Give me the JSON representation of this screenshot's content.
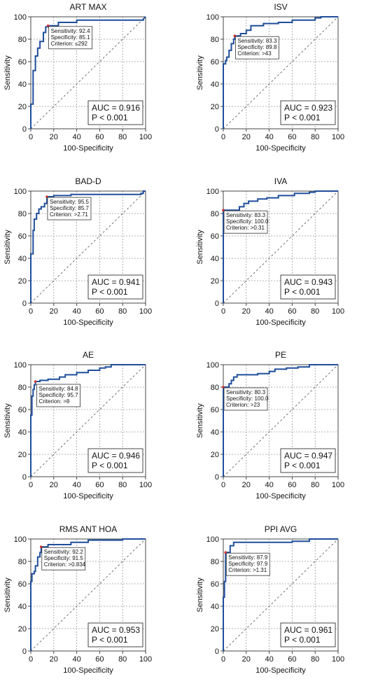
{
  "chart_data": [
    {
      "type": "line",
      "title": "ART MAX",
      "xlabel": "100-Specificity",
      "ylabel": "Sensitivity",
      "xlim": [
        0,
        100
      ],
      "ylim": [
        0,
        100
      ],
      "xticks": [
        "0",
        "20",
        "40",
        "60",
        "80",
        "100"
      ],
      "yticks": [
        "0",
        "20",
        "40",
        "60",
        "80",
        "100"
      ],
      "grid": true,
      "criterion_box": {
        "sensitivity": "Sensitivity: 92.4",
        "specificity": "Specificity: 85.1",
        "criterion": "Criterion: ≤292",
        "position": "top-left"
      },
      "auc_box": {
        "auc": "AUC = 0.916",
        "p": "P < 0.001",
        "position": "bottom-right"
      },
      "roc": [
        [
          0,
          0
        ],
        [
          0,
          22
        ],
        [
          2,
          22
        ],
        [
          2,
          52
        ],
        [
          4,
          52
        ],
        [
          4,
          65
        ],
        [
          6,
          65
        ],
        [
          6,
          72
        ],
        [
          8,
          72
        ],
        [
          8,
          78
        ],
        [
          11,
          78
        ],
        [
          11,
          86
        ],
        [
          13,
          86
        ],
        [
          13,
          91
        ],
        [
          15,
          91
        ],
        [
          15,
          92
        ],
        [
          24,
          92
        ],
        [
          24,
          95
        ],
        [
          40,
          95
        ],
        [
          40,
          97
        ],
        [
          98,
          97
        ],
        [
          98,
          98
        ],
        [
          100,
          100
        ]
      ],
      "cut_point": [
        15,
        92
      ]
    },
    {
      "type": "line",
      "title": "ISV",
      "xlabel": "100-Specificity",
      "ylabel": "Sensitivity",
      "xlim": [
        0,
        100
      ],
      "ylim": [
        0,
        100
      ],
      "xticks": [
        "0",
        "20",
        "40",
        "60",
        "80",
        "100"
      ],
      "yticks": [
        "0",
        "20",
        "40",
        "60",
        "80",
        "100"
      ],
      "grid": true,
      "criterion_box": {
        "sensitivity": "Sensitivity: 83.3",
        "specificity": "Specificity: 89.8",
        "criterion": "Criterion: >43",
        "position": "top-center"
      },
      "auc_box": {
        "auc": "AUC = 0.923",
        "p": "P < 0.001",
        "position": "bottom-right"
      },
      "roc": [
        [
          0,
          0
        ],
        [
          0,
          58
        ],
        [
          2,
          58
        ],
        [
          2,
          61
        ],
        [
          3,
          61
        ],
        [
          3,
          64
        ],
        [
          5,
          64
        ],
        [
          5,
          70
        ],
        [
          7,
          70
        ],
        [
          7,
          76
        ],
        [
          9,
          76
        ],
        [
          9,
          80
        ],
        [
          10,
          80
        ],
        [
          10,
          83
        ],
        [
          15,
          83
        ],
        [
          15,
          85
        ],
        [
          20,
          85
        ],
        [
          20,
          88
        ],
        [
          24,
          88
        ],
        [
          24,
          92
        ],
        [
          35,
          92
        ],
        [
          35,
          94
        ],
        [
          48,
          94
        ],
        [
          48,
          95
        ],
        [
          60,
          95
        ],
        [
          60,
          97
        ],
        [
          80,
          97
        ],
        [
          80,
          99
        ],
        [
          85,
          99
        ],
        [
          85,
          100
        ],
        [
          100,
          100
        ]
      ],
      "cut_point": [
        10,
        83
      ]
    },
    {
      "type": "line",
      "title": "BAD-D",
      "xlabel": "100-Specificity",
      "ylabel": "Sensitivity",
      "xlim": [
        0,
        100
      ],
      "ylim": [
        0,
        100
      ],
      "xticks": [
        "0",
        "20",
        "40",
        "60",
        "80",
        "100"
      ],
      "yticks": [
        "0",
        "20",
        "40",
        "60",
        "80",
        "100"
      ],
      "grid": true,
      "criterion_box": {
        "sensitivity": "Sensitivity: 95.5",
        "specificity": "Specificity: 85.7",
        "criterion": "Criterion: >2.71",
        "position": "top-left"
      },
      "auc_box": {
        "auc": "AUC = 0.941",
        "p": "P < 0.001",
        "position": "bottom-right"
      },
      "roc": [
        [
          0,
          0
        ],
        [
          0,
          44
        ],
        [
          2,
          44
        ],
        [
          2,
          65
        ],
        [
          3,
          65
        ],
        [
          3,
          75
        ],
        [
          5,
          75
        ],
        [
          5,
          80
        ],
        [
          7,
          80
        ],
        [
          7,
          84
        ],
        [
          9,
          84
        ],
        [
          9,
          86
        ],
        [
          12,
          86
        ],
        [
          12,
          89
        ],
        [
          14,
          89
        ],
        [
          14,
          95
        ],
        [
          20,
          95
        ],
        [
          20,
          96
        ],
        [
          35,
          96
        ],
        [
          35,
          97
        ],
        [
          96,
          97
        ],
        [
          96,
          98
        ],
        [
          98,
          98
        ],
        [
          98,
          100
        ],
        [
          100,
          100
        ]
      ],
      "cut_point": [
        14,
        95
      ]
    },
    {
      "type": "line",
      "title": "IVA",
      "xlabel": "100-Specificity",
      "ylabel": "Sensitivity",
      "xlim": [
        0,
        100
      ],
      "ylim": [
        0,
        100
      ],
      "xticks": [
        "0",
        "20",
        "40",
        "60",
        "80",
        "100"
      ],
      "yticks": [
        "0",
        "20",
        "40",
        "60",
        "80",
        "100"
      ],
      "grid": true,
      "criterion_box": {
        "sensitivity": "Sensitivity: 83.3",
        "specificity": "Specificity: 100.0",
        "criterion": "Criterion: >0.31",
        "position": "top-left"
      },
      "auc_box": {
        "auc": "AUC = 0.943",
        "p": "P < 0.001",
        "position": "bottom-right"
      },
      "roc": [
        [
          0,
          0
        ],
        [
          0,
          83
        ],
        [
          14,
          83
        ],
        [
          14,
          86
        ],
        [
          18,
          86
        ],
        [
          18,
          89
        ],
        [
          22,
          89
        ],
        [
          22,
          91
        ],
        [
          30,
          91
        ],
        [
          30,
          93
        ],
        [
          38,
          93
        ],
        [
          38,
          94
        ],
        [
          48,
          94
        ],
        [
          48,
          96
        ],
        [
          62,
          96
        ],
        [
          62,
          98
        ],
        [
          75,
          98
        ],
        [
          75,
          99
        ],
        [
          80,
          99
        ],
        [
          80,
          100
        ],
        [
          100,
          100
        ]
      ],
      "cut_point": [
        0,
        83
      ]
    },
    {
      "type": "line",
      "title": "AE",
      "xlabel": "100-Specificity",
      "ylabel": "Sensitivity",
      "xlim": [
        0,
        100
      ],
      "ylim": [
        0,
        100
      ],
      "xticks": [
        "0",
        "20",
        "40",
        "60",
        "80",
        "100"
      ],
      "yticks": [
        "0",
        "20",
        "40",
        "60",
        "80",
        "100"
      ],
      "grid": true,
      "criterion_box": {
        "sensitivity": "Sensitivity: 84.8",
        "specificity": "Specificity: 95.7",
        "criterion": "Criterion: >8",
        "position": "left-middle"
      },
      "auc_box": {
        "auc": "AUC = 0.946",
        "p": "P < 0.001",
        "position": "bottom-right"
      },
      "roc": [
        [
          0,
          0
        ],
        [
          0,
          55
        ],
        [
          1,
          55
        ],
        [
          1,
          72
        ],
        [
          2,
          72
        ],
        [
          2,
          78
        ],
        [
          3,
          78
        ],
        [
          3,
          82
        ],
        [
          4,
          82
        ],
        [
          4,
          85
        ],
        [
          8,
          85
        ],
        [
          8,
          86
        ],
        [
          15,
          86
        ],
        [
          15,
          87
        ],
        [
          25,
          87
        ],
        [
          25,
          89
        ],
        [
          30,
          89
        ],
        [
          30,
          91
        ],
        [
          40,
          91
        ],
        [
          40,
          93
        ],
        [
          50,
          93
        ],
        [
          50,
          95
        ],
        [
          60,
          95
        ],
        [
          60,
          97
        ],
        [
          65,
          97
        ],
        [
          65,
          98
        ],
        [
          70,
          98
        ],
        [
          70,
          100
        ],
        [
          100,
          100
        ]
      ],
      "cut_point": [
        4,
        85
      ]
    },
    {
      "type": "line",
      "title": "PE",
      "xlabel": "100-Specificity",
      "ylabel": "Sensitivity",
      "xlim": [
        0,
        100
      ],
      "ylim": [
        0,
        100
      ],
      "xticks": [
        "0",
        "20",
        "40",
        "60",
        "80",
        "100"
      ],
      "yticks": [
        "0",
        "20",
        "40",
        "60",
        "80",
        "100"
      ],
      "grid": true,
      "criterion_box": {
        "sensitivity": "Sensitivity: 80.3",
        "specificity": "Specificity: 100.0",
        "criterion": "Criterion: >23",
        "position": "top-left"
      },
      "auc_box": {
        "auc": "AUC = 0.947",
        "p": "P < 0.001",
        "position": "bottom-right"
      },
      "roc": [
        [
          0,
          0
        ],
        [
          0,
          80
        ],
        [
          5,
          80
        ],
        [
          5,
          83
        ],
        [
          7,
          83
        ],
        [
          7,
          86
        ],
        [
          9,
          86
        ],
        [
          9,
          89
        ],
        [
          12,
          89
        ],
        [
          12,
          91
        ],
        [
          30,
          91
        ],
        [
          30,
          92
        ],
        [
          40,
          92
        ],
        [
          40,
          94
        ],
        [
          45,
          94
        ],
        [
          45,
          96
        ],
        [
          55,
          96
        ],
        [
          55,
          97
        ],
        [
          65,
          97
        ],
        [
          65,
          98
        ],
        [
          75,
          98
        ],
        [
          75,
          100
        ],
        [
          100,
          100
        ]
      ],
      "cut_point": [
        0,
        80
      ]
    },
    {
      "type": "line",
      "title": "RMS ANT HOA",
      "xlabel": "100-Specificity",
      "ylabel": "Sensitivity",
      "xlim": [
        0,
        100
      ],
      "ylim": [
        0,
        100
      ],
      "xticks": [
        "0",
        "20",
        "40",
        "60",
        "80",
        "100"
      ],
      "yticks": [
        "0",
        "20",
        "40",
        "60",
        "80",
        "100"
      ],
      "grid": true,
      "criterion_box": {
        "sensitivity": "Sensitivity: 92.2",
        "specificity": "Specificity: 91.5",
        "criterion": "Criterion: >0.834",
        "position": "top-left"
      },
      "auc_box": {
        "auc": "AUC = 0.953",
        "p": "P < 0.001",
        "position": "bottom-right"
      },
      "roc": [
        [
          0,
          0
        ],
        [
          0,
          62
        ],
        [
          1,
          62
        ],
        [
          1,
          69
        ],
        [
          3,
          69
        ],
        [
          3,
          71
        ],
        [
          4,
          71
        ],
        [
          4,
          76
        ],
        [
          6,
          76
        ],
        [
          6,
          84
        ],
        [
          8,
          84
        ],
        [
          8,
          88
        ],
        [
          9,
          88
        ],
        [
          9,
          93
        ],
        [
          15,
          93
        ],
        [
          15,
          95
        ],
        [
          35,
          95
        ],
        [
          35,
          97
        ],
        [
          50,
          97
        ],
        [
          50,
          99
        ],
        [
          80,
          99
        ],
        [
          80,
          100
        ],
        [
          100,
          100
        ]
      ],
      "cut_point": [
        9,
        93
      ]
    },
    {
      "type": "line",
      "title": "PPI AVG",
      "xlabel": "100-Specificity",
      "ylabel": "Sensitivity",
      "xlim": [
        0,
        100
      ],
      "ylim": [
        0,
        100
      ],
      "xticks": [
        "0",
        "20",
        "40",
        "60",
        "80",
        "100"
      ],
      "yticks": [
        "0",
        "20",
        "40",
        "60",
        "80",
        "100"
      ],
      "grid": true,
      "criterion_box": {
        "sensitivity": "Sensitivity: 87.9",
        "specificity": "Specificity: 97.9",
        "criterion": "Criterion: >1.31",
        "position": "top-left"
      },
      "auc_box": {
        "auc": "AUC = 0.961",
        "p": "P < 0.001",
        "position": "bottom-right"
      },
      "roc": [
        [
          0,
          0
        ],
        [
          0,
          48
        ],
        [
          1,
          48
        ],
        [
          1,
          62
        ],
        [
          2,
          62
        ],
        [
          2,
          88
        ],
        [
          6,
          88
        ],
        [
          6,
          94
        ],
        [
          9,
          94
        ],
        [
          9,
          97
        ],
        [
          60,
          97
        ],
        [
          60,
          98
        ],
        [
          75,
          98
        ],
        [
          75,
          100
        ],
        [
          100,
          100
        ]
      ],
      "cut_point": [
        2,
        88
      ]
    }
  ],
  "colors": {
    "curve": "#1f4e9c",
    "diagonal": "#666666",
    "grid": "#9a9a9a",
    "cut_point": "#d03030"
  }
}
